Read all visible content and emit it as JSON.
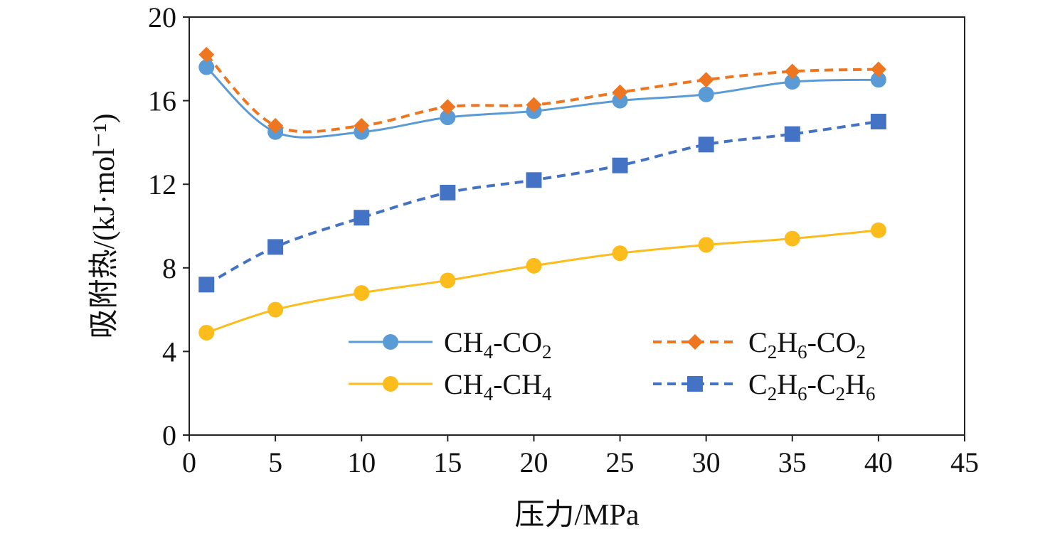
{
  "chart_data": {
    "type": "line",
    "title": "",
    "xlabel": "压力/MPa",
    "ylabel": "吸附热/(kJ·mol⁻¹)",
    "xlim": [
      0,
      45
    ],
    "ylim": [
      0,
      20
    ],
    "x_ticks": [
      "0",
      "5",
      "10",
      "15",
      "20",
      "25",
      "30",
      "35",
      "40",
      "45"
    ],
    "y_ticks": [
      "0",
      "4",
      "8",
      "12",
      "16",
      "20"
    ],
    "grid": false,
    "legend_position": "bottom-right",
    "x": [
      1,
      5,
      10,
      15,
      20,
      25,
      30,
      35,
      40
    ],
    "series": [
      {
        "name": "CH4-CO2",
        "legend_main": "CH",
        "legend_sub1": "4",
        "legend_mid": "-CO",
        "legend_sub2": "2",
        "legend_tail": "",
        "legend_sub3": "",
        "color": "#5b9bd5",
        "marker": "circle",
        "dashed": false,
        "values": [
          17.6,
          14.5,
          14.5,
          15.2,
          15.5,
          16.0,
          16.3,
          16.9,
          17.0
        ]
      },
      {
        "name": "CH4-CH4",
        "legend_main": "CH",
        "legend_sub1": "4",
        "legend_mid": "-CH",
        "legend_sub2": "4",
        "legend_tail": "",
        "legend_sub3": "",
        "color": "#fbbc1c",
        "marker": "circle",
        "dashed": false,
        "values": [
          4.9,
          6.0,
          6.8,
          7.4,
          8.1,
          8.7,
          9.1,
          9.4,
          9.8
        ]
      },
      {
        "name": "C2H6-CO2",
        "legend_main": "C",
        "legend_sub1": "2",
        "legend_mid": "H",
        "legend_sub2": "6",
        "legend_tail": "-CO",
        "legend_sub3": "2",
        "color": "#ee7621",
        "marker": "diamond",
        "dashed": true,
        "values": [
          18.2,
          14.8,
          14.8,
          15.7,
          15.8,
          16.4,
          17.0,
          17.4,
          17.5
        ]
      },
      {
        "name": "C2H6-C2H6",
        "legend_main": "C",
        "legend_sub1": "2",
        "legend_mid": "H",
        "legend_sub2": "6",
        "legend_tail": "-C",
        "legend_sub3": "2",
        "legend_tail2": "H",
        "legend_sub4": "6",
        "color": "#4472c4",
        "marker": "square",
        "dashed": true,
        "values": [
          7.2,
          9.0,
          10.4,
          11.6,
          12.2,
          12.9,
          13.9,
          14.4,
          15.0
        ]
      }
    ]
  }
}
